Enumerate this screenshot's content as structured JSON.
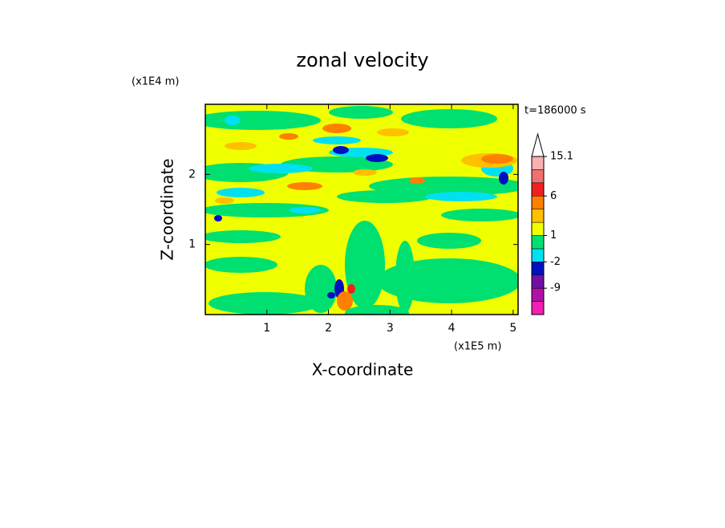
{
  "chart_data": {
    "type": "contour",
    "title": "zonal velocity",
    "time_label": "t=186000 s",
    "x_label": "X-coordinate",
    "y_label": "Z-coordinate",
    "x_unit": "(x1E5 m)",
    "y_unit": "(x1E4 m)",
    "xlim": [
      0,
      5.08
    ],
    "xticks": [
      1,
      2,
      3,
      4,
      5
    ],
    "ylim": [
      0,
      3.0
    ],
    "yticks": [
      1,
      2
    ],
    "colorbar": {
      "boundaries": [
        -15,
        -12,
        -9,
        -6,
        -2,
        -1,
        1,
        2,
        3,
        6,
        9,
        12,
        15.1
      ],
      "colors": [
        "#f020b0",
        "#b010a8",
        "#7010a0",
        "#0010c0",
        "#00e0f0",
        "#00e070",
        "#f0ff00",
        "#ffc000",
        "#ff8000",
        "#f02020",
        "#f07070",
        "#f8b0b0"
      ],
      "extend_color": "#ffffff",
      "ticks": [
        -9,
        -2,
        1,
        6,
        15.1
      ]
    }
  }
}
